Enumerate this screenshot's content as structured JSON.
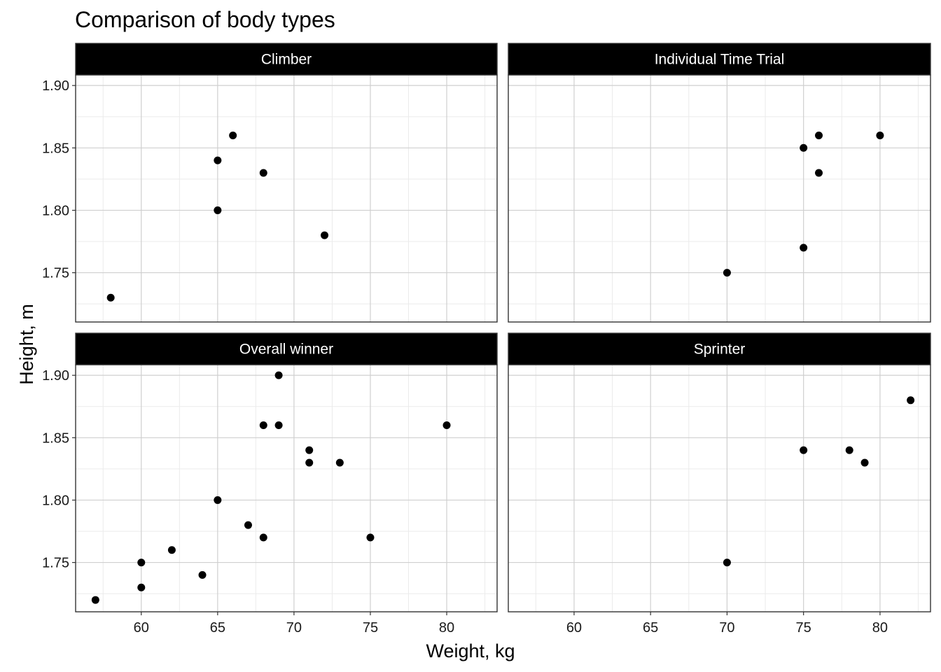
{
  "chart_data": {
    "type": "scatter",
    "title": "Comparison of body types",
    "xlabel": "Weight, kg",
    "ylabel": "Height, m",
    "xlim": [
      55.7,
      83.3
    ],
    "ylim": [
      1.7105,
      1.9085
    ],
    "x_ticks": [
      60,
      65,
      70,
      75,
      80
    ],
    "y_ticks": [
      1.75,
      1.8,
      1.85,
      1.9
    ],
    "y_tick_labels": [
      "1.75",
      "1.80",
      "1.85",
      "1.90"
    ],
    "grid": true,
    "point_color": "#000000",
    "strip_color": "#000000",
    "strip_text_color": "#ffffff",
    "facets": [
      {
        "name": "Climber",
        "points": [
          [
            58,
            1.73
          ],
          [
            65,
            1.84
          ],
          [
            65,
            1.8
          ],
          [
            66,
            1.86
          ],
          [
            68,
            1.83
          ],
          [
            72,
            1.78
          ]
        ]
      },
      {
        "name": "Individual Time Trial",
        "points": [
          [
            70,
            1.75
          ],
          [
            75,
            1.85
          ],
          [
            75,
            1.77
          ],
          [
            76,
            1.86
          ],
          [
            76,
            1.83
          ],
          [
            80,
            1.86
          ]
        ]
      },
      {
        "name": "Overall winner",
        "points": [
          [
            57,
            1.72
          ],
          [
            60,
            1.75
          ],
          [
            60,
            1.73
          ],
          [
            62,
            1.76
          ],
          [
            64,
            1.74
          ],
          [
            65,
            1.8
          ],
          [
            67,
            1.78
          ],
          [
            68,
            1.86
          ],
          [
            68,
            1.77
          ],
          [
            69,
            1.9
          ],
          [
            69,
            1.86
          ],
          [
            71,
            1.84
          ],
          [
            71,
            1.83
          ],
          [
            73,
            1.83
          ],
          [
            75,
            1.77
          ],
          [
            80,
            1.86
          ]
        ]
      },
      {
        "name": "Sprinter",
        "points": [
          [
            70,
            1.75
          ],
          [
            75,
            1.84
          ],
          [
            78,
            1.84
          ],
          [
            79,
            1.83
          ],
          [
            82,
            1.88
          ]
        ]
      }
    ]
  }
}
